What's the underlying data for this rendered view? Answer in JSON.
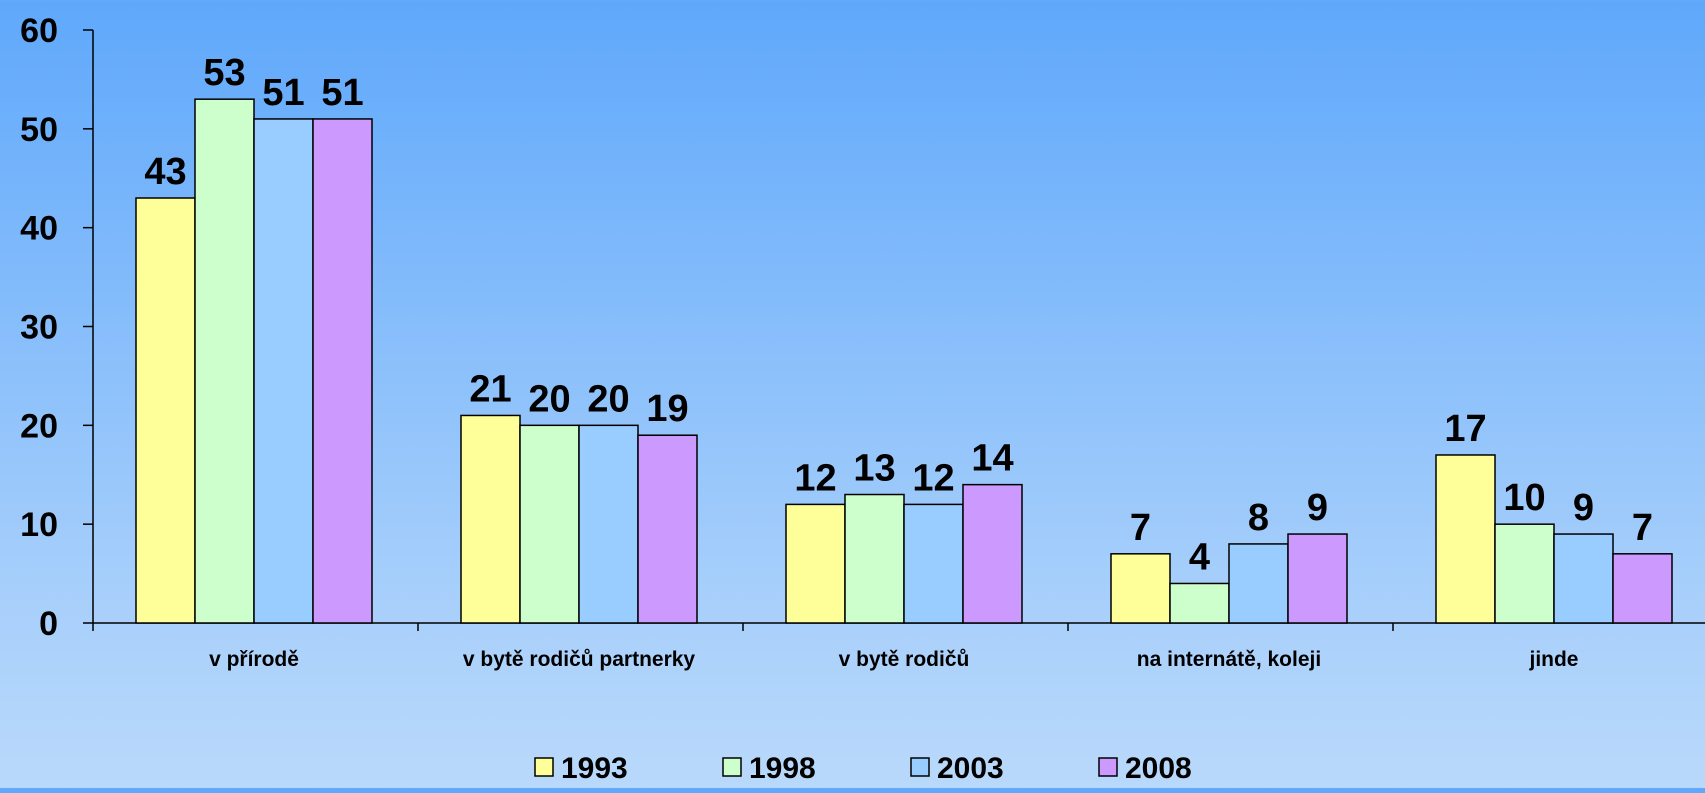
{
  "chart_data": {
    "type": "bar",
    "categories": [
      "v přírodě",
      "v bytě rodičů partnerky",
      "v bytě rodičů",
      "na internátě, koleji",
      "jinde"
    ],
    "series": [
      {
        "name": "1993",
        "color": "#ffff99",
        "values": [
          43,
          21,
          12,
          7,
          17
        ]
      },
      {
        "name": "1998",
        "color": "#ccffcc",
        "values": [
          53,
          20,
          13,
          4,
          10
        ]
      },
      {
        "name": "2003",
        "color": "#99ccff",
        "values": [
          51,
          20,
          12,
          8,
          9
        ]
      },
      {
        "name": "2008",
        "color": "#cc99ff",
        "values": [
          51,
          19,
          14,
          9,
          7
        ]
      }
    ],
    "ylim": [
      0,
      60
    ],
    "yticks": [
      "0",
      "10",
      "20",
      "30",
      "40",
      "50",
      "60"
    ],
    "grid": false,
    "legend_position": "bottom",
    "data_labels": true
  }
}
